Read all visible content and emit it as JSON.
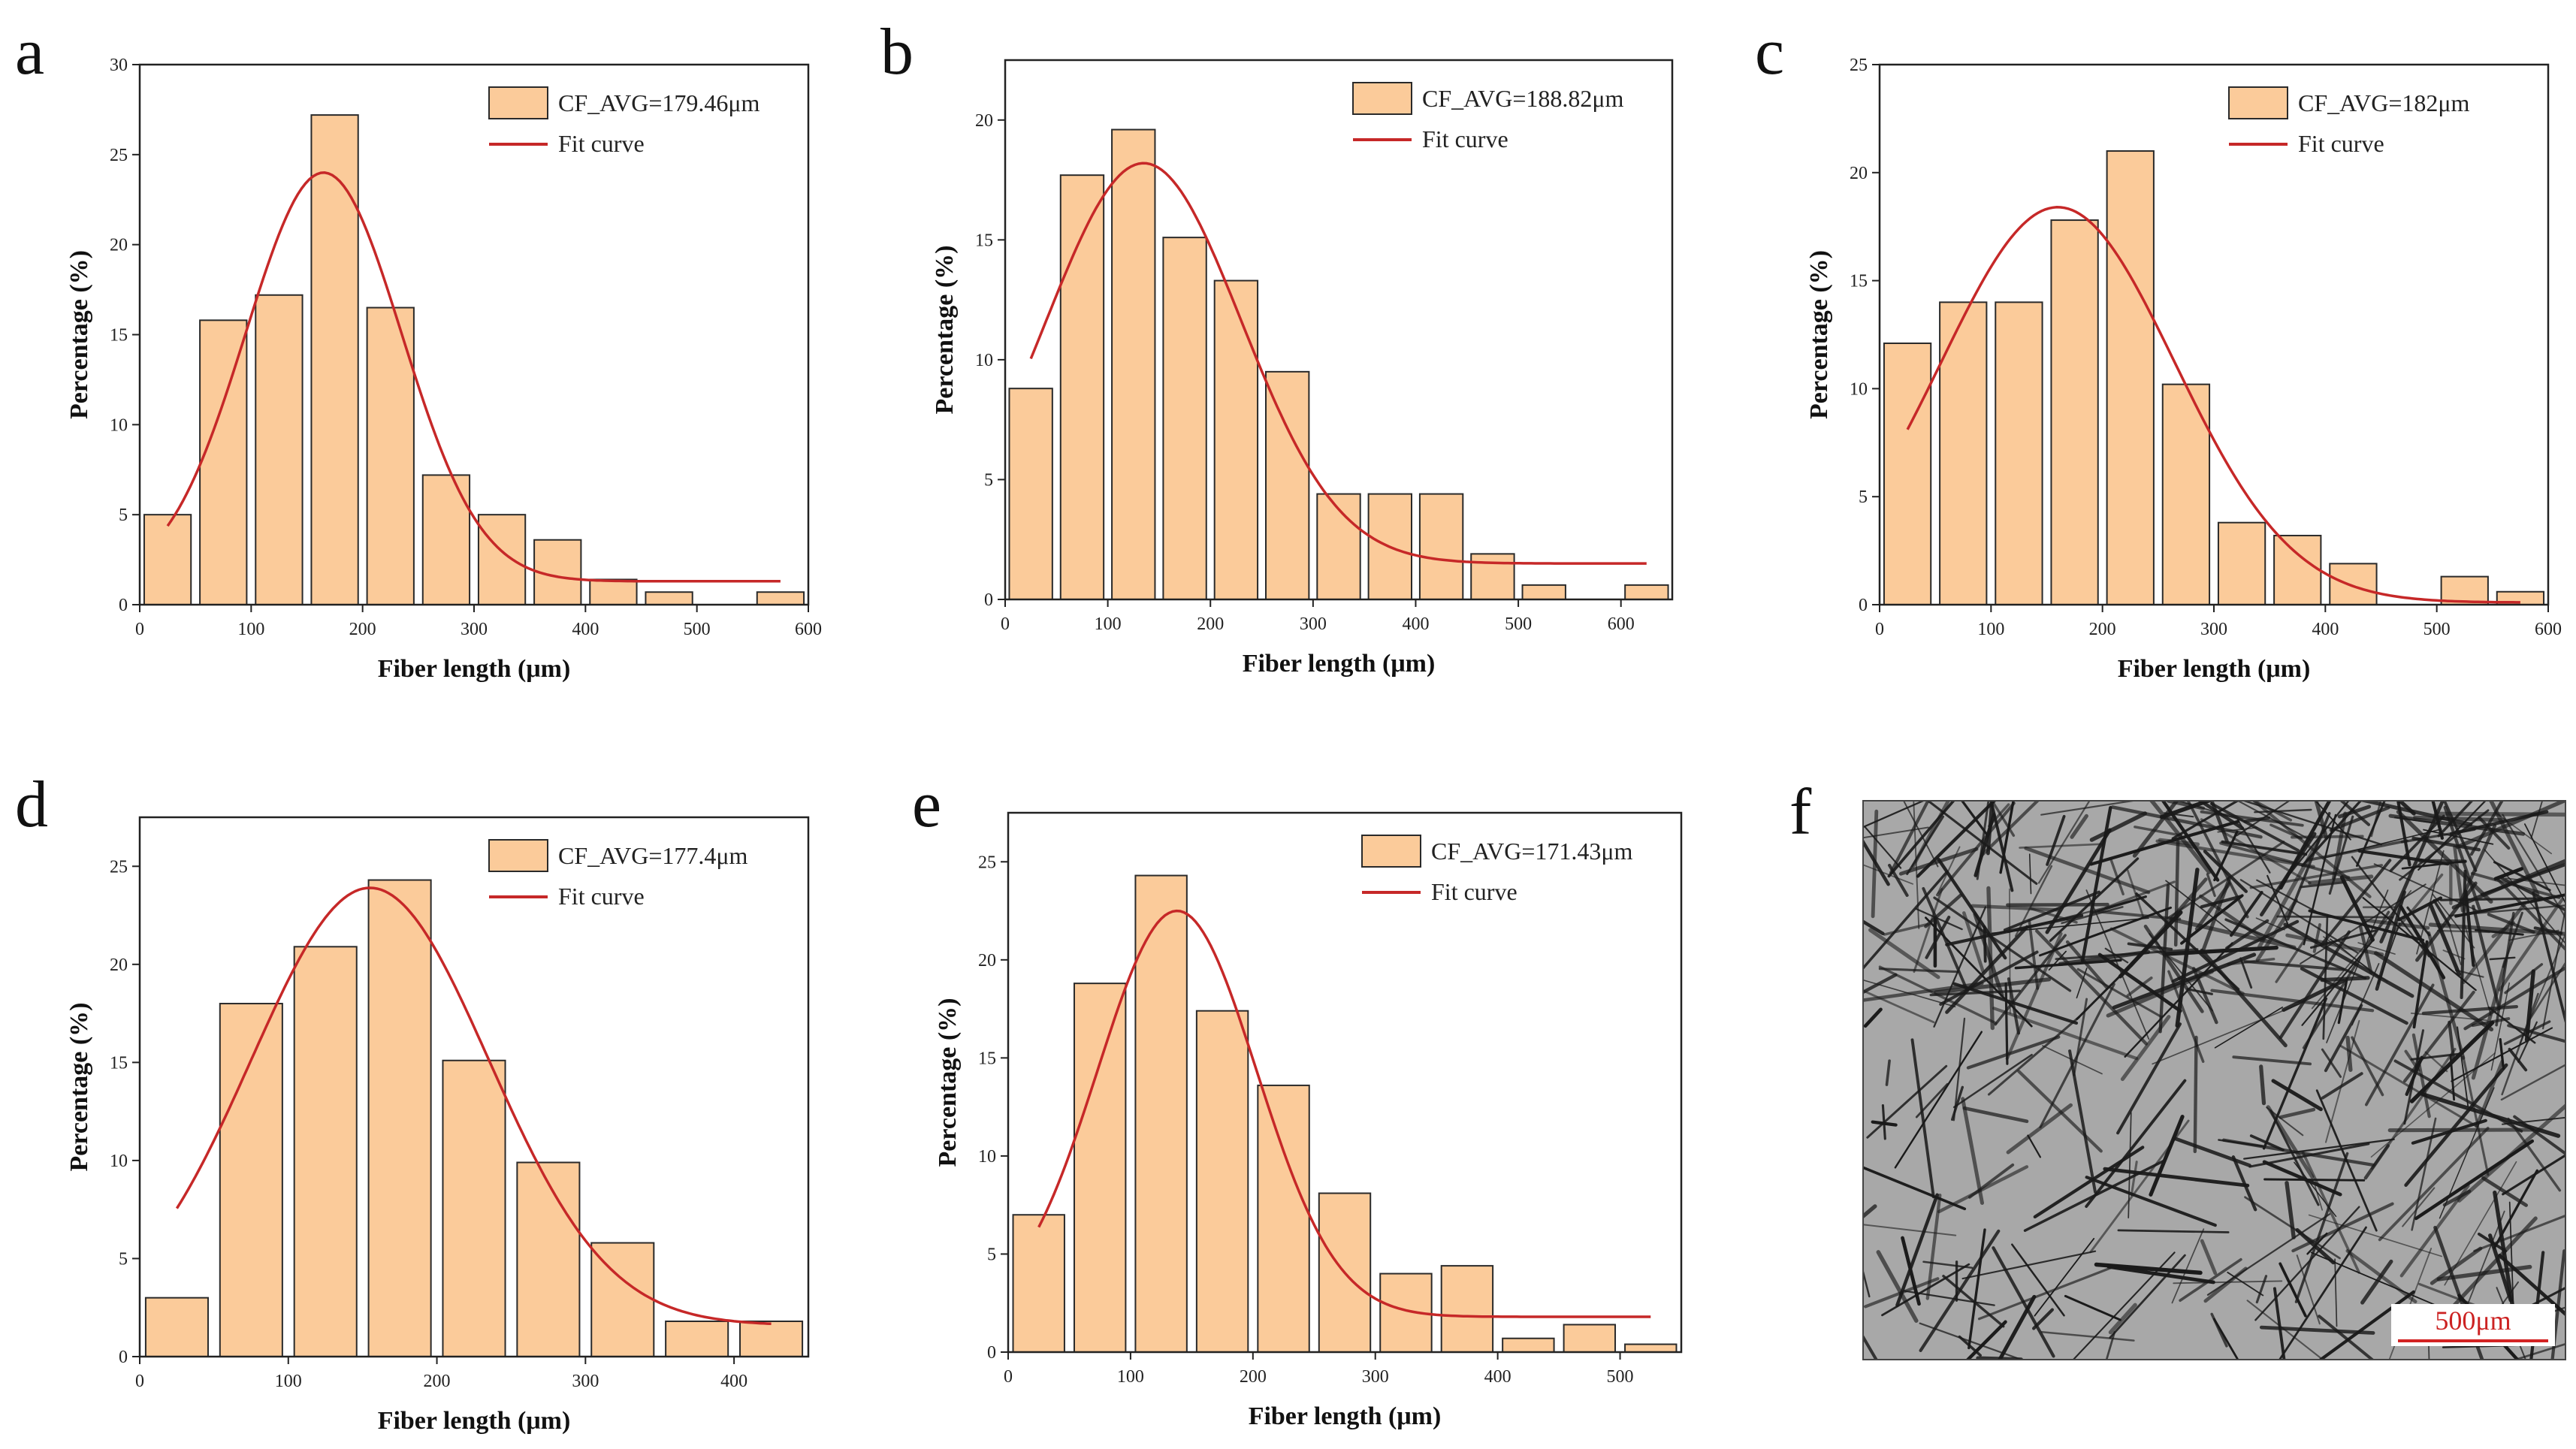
{
  "chart_data": [
    {
      "panel": "a",
      "type": "bar",
      "xlabel": "Fiber length (μm)",
      "ylabel": "Percentage (%)",
      "xlim": [
        0,
        600
      ],
      "ylim": [
        0,
        30
      ],
      "xticks": [
        0,
        100,
        200,
        300,
        400,
        500,
        600
      ],
      "yticks": [
        0,
        5,
        10,
        15,
        20,
        25,
        30
      ],
      "bin_width": 50,
      "bins": [
        0,
        50,
        100,
        150,
        200,
        250,
        300,
        350,
        400,
        450,
        500,
        550
      ],
      "values": [
        5.0,
        15.8,
        17.2,
        27.2,
        16.5,
        7.2,
        5.0,
        3.6,
        1.4,
        0.7,
        0.0,
        0.7
      ],
      "fit_curve": {
        "mu": 165,
        "sigma": 70,
        "amplitude": 22.7,
        "offset": 1.3,
        "x_start": 25,
        "x_end": 575
      },
      "legend": {
        "bar": "CF_AVG=179.46μm",
        "line": "Fit curve",
        "position": "top-right"
      }
    },
    {
      "panel": "b",
      "type": "bar",
      "xlabel": "Fiber length (μm)",
      "ylabel": "Percentage (%)",
      "xlim": [
        0,
        650
      ],
      "ylim": [
        0,
        22.5
      ],
      "xticks": [
        0,
        100,
        200,
        300,
        400,
        500,
        600
      ],
      "yticks": [
        0,
        5,
        10,
        15,
        20
      ],
      "bin_width": 50,
      "bins": [
        0,
        50,
        100,
        150,
        200,
        250,
        300,
        350,
        400,
        450,
        500,
        550,
        600
      ],
      "values": [
        8.8,
        17.7,
        19.6,
        15.1,
        13.3,
        9.5,
        4.4,
        4.4,
        4.4,
        1.9,
        0.6,
        0.0,
        0.6
      ],
      "fit_curve": {
        "mu": 135,
        "sigma": 95,
        "amplitude": 16.7,
        "offset": 1.5,
        "x_start": 25,
        "x_end": 625
      },
      "legend": {
        "bar": "CF_AVG=188.82μm",
        "line": "Fit curve",
        "position": "top-right"
      }
    },
    {
      "panel": "c",
      "type": "bar",
      "xlabel": "Fiber length (μm)",
      "ylabel": "Percentage (%)",
      "xlim": [
        0,
        600
      ],
      "ylim": [
        0,
        25
      ],
      "xticks": [
        0,
        100,
        200,
        300,
        400,
        500,
        600
      ],
      "yticks": [
        0,
        5,
        10,
        15,
        20,
        25
      ],
      "bin_width": 50,
      "bins": [
        0,
        50,
        100,
        150,
        200,
        250,
        300,
        350,
        400,
        450,
        500,
        550
      ],
      "values": [
        12.1,
        14.0,
        14.0,
        17.8,
        21.0,
        10.2,
        3.8,
        3.2,
        1.9,
        0.0,
        1.3,
        0.6
      ],
      "fit_curve": {
        "mu": 160,
        "sigma": 105,
        "amplitude": 18.3,
        "offset": 0.1,
        "x_start": 25,
        "x_end": 575
      },
      "legend": {
        "bar": "CF_AVG=182μm",
        "line": "Fit curve",
        "position": "top-right"
      }
    },
    {
      "panel": "d",
      "type": "bar",
      "xlabel": "Fiber length (μm)",
      "ylabel": "Percentage (%)",
      "xlim": [
        0,
        450
      ],
      "ylim": [
        0,
        27.5
      ],
      "xticks": [
        0,
        100,
        200,
        300,
        400
      ],
      "yticks": [
        0,
        5,
        10,
        15,
        20,
        25
      ],
      "bin_width": 50,
      "bins": [
        0,
        50,
        100,
        150,
        200,
        250,
        300,
        350,
        400
      ],
      "values": [
        3.0,
        18.0,
        20.9,
        24.3,
        15.1,
        9.9,
        5.8,
        1.8,
        1.8
      ],
      "fit_curve": {
        "mu": 155,
        "sigma": 80,
        "amplitude": 22.3,
        "offset": 1.6,
        "x_start": 25,
        "x_end": 425
      },
      "legend": {
        "bar": "CF_AVG=177.4μm",
        "line": "Fit curve",
        "position": "top-right"
      }
    },
    {
      "panel": "e",
      "type": "bar",
      "xlabel": "Fiber length (μm)",
      "ylabel": "Percentage (%)",
      "xlim": [
        0,
        550
      ],
      "ylim": [
        0,
        27.5
      ],
      "xticks": [
        0,
        100,
        200,
        300,
        400,
        500
      ],
      "yticks": [
        0,
        5,
        10,
        15,
        20,
        25
      ],
      "bin_width": 50,
      "bins": [
        0,
        50,
        100,
        150,
        200,
        250,
        300,
        350,
        400,
        450,
        500
      ],
      "values": [
        7.0,
        18.8,
        24.3,
        17.4,
        13.6,
        8.1,
        4.0,
        4.4,
        0.7,
        1.4,
        0.4
      ],
      "fit_curve": {
        "mu": 138,
        "sigma": 65,
        "amplitude": 20.7,
        "offset": 1.8,
        "x_start": 25,
        "x_end": 525
      },
      "legend": {
        "bar": "CF_AVG=171.43μm",
        "line": "Fit curve",
        "position": "top-right"
      }
    }
  ],
  "micrograph": {
    "panel": "f",
    "description_label": "micrograph",
    "scale_bar_label": "500μm"
  },
  "colors": {
    "bar_fill": "#fbcb9a",
    "bar_stroke": "#2a2a2a",
    "fit_line": "#c62828",
    "axis": "#222222",
    "scale_bar": "#d32222",
    "micrograph_bg": "#a8a8a8",
    "fiber": "#1a1a1a"
  }
}
